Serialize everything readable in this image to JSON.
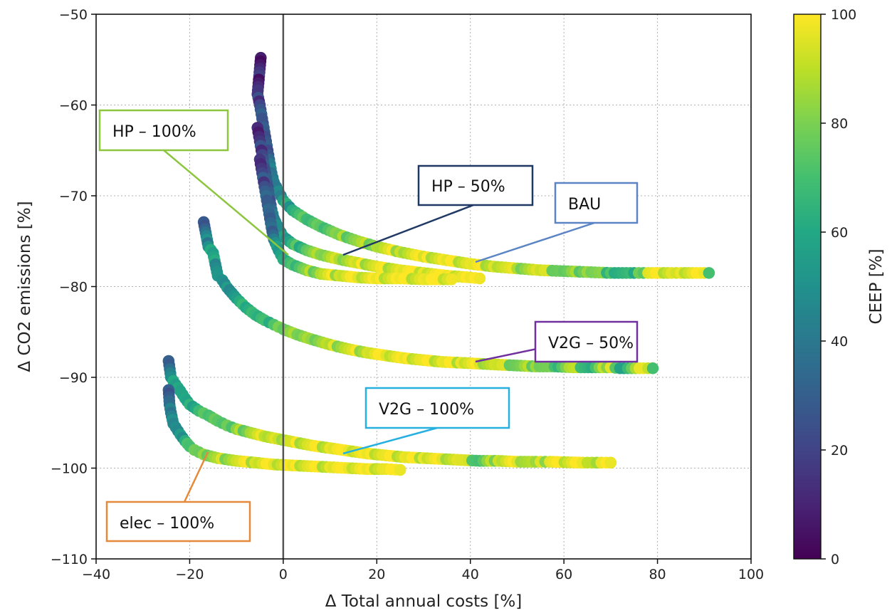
{
  "chart_data": {
    "type": "scatter",
    "title": "",
    "xlabel": "Δ Total annual costs [%]",
    "ylabel": "Δ CO2 emissions [%]",
    "xlim": [
      -40,
      100
    ],
    "ylim": [
      -110,
      -50
    ],
    "x_ticks": [
      -40,
      -20,
      0,
      20,
      40,
      60,
      80,
      100
    ],
    "y_ticks": [
      -110,
      -100,
      -90,
      -80,
      -70,
      -60,
      -50
    ],
    "grid": true,
    "reference_line_x": 0,
    "colorbar": {
      "label": "CEEP [%]",
      "range": [
        0,
        100
      ],
      "ticks": [
        0,
        20,
        40,
        60,
        80,
        100
      ],
      "colormap": "viridis"
    },
    "series": [
      {
        "points": [
          [
            -4.8,
            -54.8,
            8
          ],
          [
            -5.5,
            -58.8,
            15
          ],
          [
            -5,
            -60,
            20
          ],
          [
            -4.5,
            -61.5,
            25
          ],
          [
            -4,
            -63,
            28
          ],
          [
            -3.5,
            -64.5,
            30
          ],
          [
            -3,
            -66,
            34
          ],
          [
            -2.5,
            -67.5,
            38
          ],
          [
            -2,
            -68.5,
            42
          ],
          [
            -1,
            -69.5,
            48
          ],
          [
            0,
            -70.5,
            55
          ],
          [
            2,
            -71.6,
            62
          ],
          [
            5,
            -72.6,
            68
          ],
          [
            8,
            -73.4,
            74
          ],
          [
            12,
            -74.3,
            80
          ],
          [
            16,
            -75,
            84
          ],
          [
            20,
            -75.6,
            88
          ],
          [
            25,
            -76.2,
            92
          ],
          [
            30,
            -76.7,
            94
          ],
          [
            35,
            -77.1,
            96
          ],
          [
            40,
            -77.5,
            97
          ],
          [
            45,
            -77.8,
            95
          ],
          [
            50,
            -78,
            88
          ],
          [
            55,
            -78.2,
            92
          ],
          [
            60,
            -78.3,
            75
          ],
          [
            65,
            -78.4,
            85
          ],
          [
            70,
            -78.5,
            72
          ],
          [
            75,
            -78.5,
            60
          ],
          [
            78,
            -78.5,
            95
          ],
          [
            83,
            -78.5,
            96
          ],
          [
            85,
            -78.5,
            97
          ],
          [
            90,
            -78.5,
            97
          ],
          [
            91,
            -78.5,
            70
          ]
        ]
      },
      {
        "points": [
          [
            -5.5,
            -62.5,
            12
          ],
          [
            -5,
            -64,
            16
          ],
          [
            -4.5,
            -65.5,
            20
          ],
          [
            -4,
            -67,
            24
          ],
          [
            -3.5,
            -68.5,
            28
          ],
          [
            -3,
            -70,
            32
          ],
          [
            -2.5,
            -71.5,
            35
          ],
          [
            -2,
            -72.5,
            40
          ],
          [
            -1,
            -73.6,
            48
          ],
          [
            0,
            -74.5,
            58
          ],
          [
            2,
            -75.3,
            66
          ],
          [
            5,
            -76,
            74
          ],
          [
            8,
            -76.5,
            82
          ],
          [
            12,
            -77,
            88
          ],
          [
            16,
            -77.4,
            92
          ],
          [
            20,
            -77.8,
            95
          ],
          [
            25,
            -78.2,
            97
          ],
          [
            30,
            -78.5,
            97
          ],
          [
            35,
            -78.8,
            98
          ],
          [
            40,
            -79,
            98
          ],
          [
            42,
            -79.1,
            98
          ]
        ]
      },
      {
        "points": [
          [
            -5,
            -66,
            16
          ],
          [
            -4.5,
            -67.5,
            20
          ],
          [
            -4,
            -69,
            24
          ],
          [
            -3.5,
            -70.5,
            28
          ],
          [
            -3,
            -72,
            32
          ],
          [
            -2.5,
            -73.5,
            36
          ],
          [
            -2,
            -74.8,
            42
          ],
          [
            -1,
            -76,
            52
          ],
          [
            0,
            -77,
            62
          ],
          [
            2,
            -77.6,
            72
          ],
          [
            5,
            -78.2,
            82
          ],
          [
            8,
            -78.6,
            88
          ],
          [
            12,
            -78.8,
            93
          ],
          [
            16,
            -79,
            96
          ],
          [
            20,
            -79.1,
            97
          ],
          [
            25,
            -79.1,
            98
          ],
          [
            30,
            -79.2,
            98
          ],
          [
            36,
            -79.2,
            98
          ]
        ]
      },
      {
        "points": [
          [
            -17,
            -72.9,
            28
          ],
          [
            -16,
            -75.6,
            50
          ],
          [
            -15,
            -76.3,
            55
          ],
          [
            -14,
            -78.8,
            52
          ],
          [
            -13,
            -79.3,
            50
          ],
          [
            -12,
            -80.1,
            55
          ],
          [
            -10,
            -81.3,
            55
          ],
          [
            -8,
            -82.3,
            60
          ],
          [
            -6,
            -83.1,
            65
          ],
          [
            -4,
            -83.7,
            70
          ],
          [
            -2,
            -84.2,
            72
          ],
          [
            0,
            -84.7,
            75
          ],
          [
            3,
            -85.3,
            80
          ],
          [
            6,
            -85.8,
            84
          ],
          [
            10,
            -86.4,
            88
          ],
          [
            14,
            -86.9,
            92
          ],
          [
            18,
            -87.3,
            94
          ],
          [
            22,
            -87.6,
            96
          ],
          [
            26,
            -87.9,
            97
          ],
          [
            30,
            -88.1,
            97
          ],
          [
            34,
            -88.3,
            97
          ],
          [
            38,
            -88.4,
            97
          ],
          [
            42,
            -88.5,
            95
          ],
          [
            46,
            -88.6,
            92
          ],
          [
            50,
            -88.7,
            78
          ],
          [
            54,
            -88.8,
            85
          ],
          [
            58,
            -88.8,
            70
          ],
          [
            62,
            -88.9,
            90
          ],
          [
            66,
            -88.9,
            62
          ],
          [
            70,
            -88.9,
            96
          ],
          [
            72,
            -89,
            58
          ],
          [
            77,
            -89,
            97
          ],
          [
            79,
            -89,
            70
          ]
        ]
      },
      {
        "points": [
          [
            -24.5,
            -88.2,
            30
          ],
          [
            -24,
            -90,
            48
          ],
          [
            -23,
            -90.8,
            55
          ],
          [
            -22,
            -91.5,
            58
          ],
          [
            -21,
            -92.3,
            60
          ],
          [
            -20,
            -93,
            65
          ],
          [
            -18,
            -93.7,
            68
          ],
          [
            -16,
            -94.2,
            70
          ],
          [
            -14,
            -94.8,
            74
          ],
          [
            -12,
            -95.3,
            78
          ],
          [
            -10,
            -95.7,
            82
          ],
          [
            -7,
            -96.1,
            86
          ],
          [
            -4,
            -96.5,
            90
          ],
          [
            -1,
            -96.8,
            92
          ],
          [
            2,
            -97.1,
            94
          ],
          [
            6,
            -97.5,
            96
          ],
          [
            10,
            -97.8,
            97
          ],
          [
            14,
            -98.1,
            97
          ],
          [
            18,
            -98.4,
            97
          ],
          [
            22,
            -98.6,
            97
          ],
          [
            26,
            -98.8,
            97
          ],
          [
            30,
            -98.9,
            97
          ],
          [
            34,
            -99,
            96
          ],
          [
            38,
            -99.1,
            95
          ],
          [
            42,
            -99.2,
            70
          ],
          [
            46,
            -99.2,
            92
          ],
          [
            50,
            -99.3,
            96
          ],
          [
            54,
            -99.3,
            85
          ],
          [
            57,
            -99.3,
            96
          ],
          [
            64,
            -99.4,
            97
          ],
          [
            66,
            -99.4,
            90
          ],
          [
            68,
            -99.4,
            97
          ],
          [
            70,
            -99.4,
            97
          ]
        ]
      },
      {
        "points": [
          [
            -24.5,
            -91.4,
            30
          ],
          [
            -24.3,
            -93,
            35
          ],
          [
            -24,
            -93.9,
            38
          ],
          [
            -23.5,
            -95.1,
            45
          ],
          [
            -23,
            -95.5,
            48
          ],
          [
            -22,
            -96.3,
            55
          ],
          [
            -21,
            -97,
            62
          ],
          [
            -20,
            -97.6,
            70
          ],
          [
            -19,
            -98,
            78
          ],
          [
            -17,
            -98.5,
            84
          ],
          [
            -14,
            -98.9,
            88
          ],
          [
            -10,
            -99.2,
            92
          ],
          [
            -6,
            -99.4,
            94
          ],
          [
            -2,
            -99.6,
            96
          ],
          [
            2,
            -99.7,
            97
          ],
          [
            6,
            -99.8,
            97
          ],
          [
            10,
            -99.9,
            97
          ],
          [
            14,
            -100,
            97
          ],
          [
            18,
            -100.1,
            97
          ],
          [
            22,
            -100.1,
            97
          ],
          [
            25,
            -100.2,
            97
          ]
        ]
      }
    ],
    "annotations": [
      {
        "label": "HP – 100%",
        "color": "#8cc63f"
      },
      {
        "label": "HP – 50%",
        "color": "#1f3864"
      },
      {
        "label": "BAU",
        "color": "#5b84c4"
      },
      {
        "label": "V2G – 50%",
        "color": "#7030a0"
      },
      {
        "label": "V2G – 100%",
        "color": "#26b0e0"
      },
      {
        "label": "elec – 100%",
        "color": "#e58a3a"
      }
    ]
  }
}
